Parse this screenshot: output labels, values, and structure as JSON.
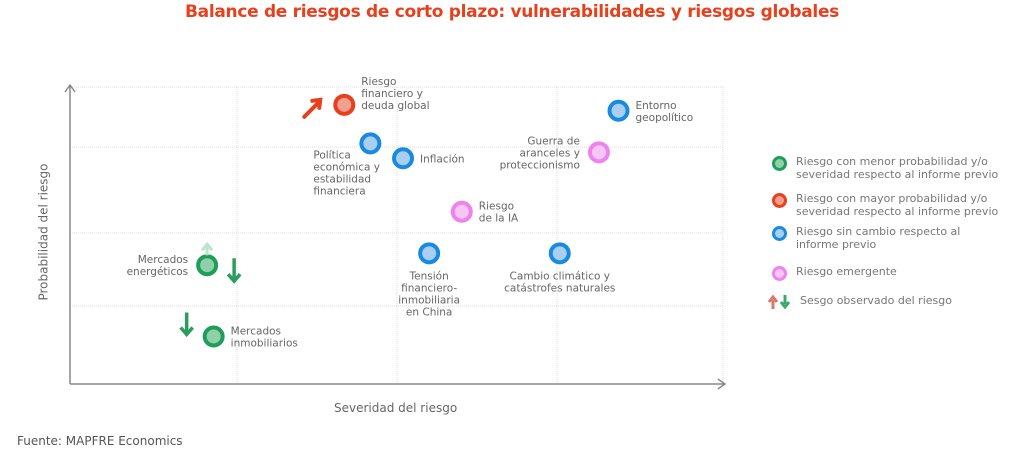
{
  "chart_data": {
    "type": "scatter",
    "title": "Balance de riesgos de corto plazo: vulnerabilidades y riesgos globales",
    "xlabel": "Severidad del riesgo",
    "ylabel": "Probabilidad del riesgo",
    "xlim": [
      0,
      100
    ],
    "ylim": [
      0,
      100
    ],
    "grid": true,
    "legend_position": "right",
    "colors": {
      "menor": "#1e9e5a",
      "mayor": "#e8401c",
      "sin_cambio": "#1a8ae0",
      "emergente": "#ee82ee"
    },
    "points": [
      {
        "label": [
          "Riesgo",
          "financiero y",
          "deuda global"
        ],
        "x": 42,
        "y": 94,
        "category": "mayor",
        "label_pos": "right",
        "arrow": "up-right"
      },
      {
        "label": [
          "Entorno",
          "geopolítico"
        ],
        "x": 84,
        "y": 92,
        "category": "sin_cambio",
        "label_pos": "right"
      },
      {
        "label": [
          "Guerra de",
          "aranceles y",
          "proteccionismo"
        ],
        "x": 81,
        "y": 78,
        "category": "emergente",
        "label_pos": "left"
      },
      {
        "label": [
          "Política",
          "económica y",
          "estabilidad",
          "financiera"
        ],
        "x": 46,
        "y": 81,
        "category": "sin_cambio",
        "label_pos": "below-left"
      },
      {
        "label": [
          "Inflación"
        ],
        "x": 51,
        "y": 76,
        "category": "sin_cambio",
        "label_pos": "right"
      },
      {
        "label": [
          "Riesgo",
          "de la IA"
        ],
        "x": 60,
        "y": 58,
        "category": "emergente",
        "label_pos": "right"
      },
      {
        "label": [
          "Tensión",
          "financiero-",
          "inmobiliaria",
          "en China"
        ],
        "x": 55,
        "y": 44,
        "category": "sin_cambio",
        "label_pos": "below"
      },
      {
        "label": [
          "Cambio climático y",
          "catástrofes naturales"
        ],
        "x": 75,
        "y": 44,
        "category": "sin_cambio",
        "label_pos": "below"
      },
      {
        "label": [
          "Mercados",
          "energéticos"
        ],
        "x": 21,
        "y": 40,
        "category": "menor",
        "label_pos": "left",
        "arrow": "down"
      },
      {
        "label": [
          "Mercados",
          "inmobiliarios"
        ],
        "x": 22,
        "y": 16,
        "category": "menor",
        "label_pos": "right",
        "arrow": "down-left"
      }
    ]
  },
  "legend": [
    {
      "text": "Riesgo con menor probabilidad y/o severidad respecto al informe previo",
      "category": "menor"
    },
    {
      "text": "Riesgo con mayor probabilidad y/o severidad respecto al informe previo",
      "category": "mayor"
    },
    {
      "text": "Riesgo sin cambio respecto al informe previo",
      "category": "sin_cambio"
    },
    {
      "text": "Riesgo emergente",
      "category": "emergente"
    },
    {
      "text": "Sesgo observado del riesgo",
      "category": "arrows"
    }
  ],
  "source": "Fuente: MAPFRE Economics"
}
